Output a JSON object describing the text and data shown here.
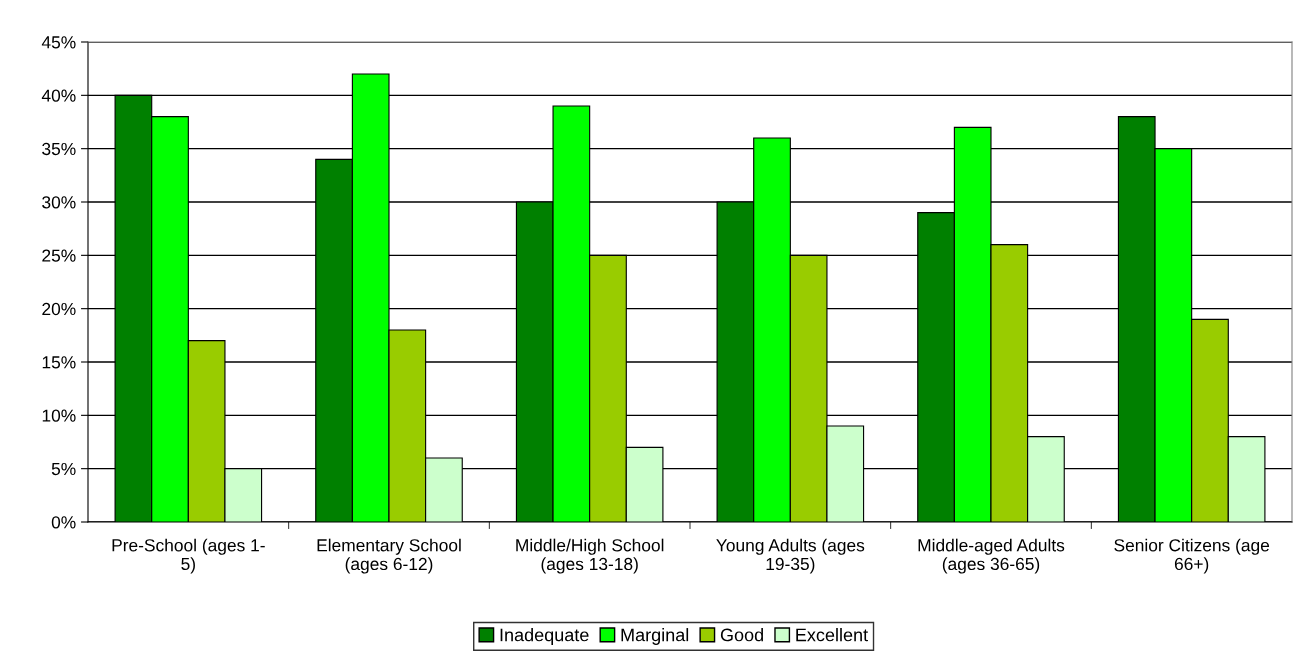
{
  "chart_data": {
    "type": "bar",
    "categories": [
      "Pre-School (ages 1-\n5)",
      "Elementary School\n(ages 6-12)",
      "Middle/High School\n(ages 13-18)",
      "Young Adults (ages\n19-35)",
      "Middle-aged Adults\n(ages 36-65)",
      "Senior Citizens (age\n66+)"
    ],
    "series": [
      {
        "name": "Inadequate",
        "color": "#008000",
        "values": [
          40,
          34,
          30,
          30,
          29,
          38
        ]
      },
      {
        "name": "Marginal",
        "color": "#00ff00",
        "values": [
          38,
          42,
          39,
          36,
          37,
          35
        ]
      },
      {
        "name": "Good",
        "color": "#99cc00",
        "values": [
          17,
          18,
          25,
          25,
          26,
          19
        ]
      },
      {
        "name": "Excellent",
        "color": "#ccffcc",
        "values": [
          5,
          6,
          7,
          9,
          8,
          8
        ]
      }
    ],
    "ylim": [
      0,
      45
    ],
    "yticks": [
      {
        "value": 0,
        "label": "0%"
      },
      {
        "value": 5,
        "label": "5%"
      },
      {
        "value": 10,
        "label": "10%"
      },
      {
        "value": 15,
        "label": "15%"
      },
      {
        "value": 20,
        "label": "20%"
      },
      {
        "value": 25,
        "label": "25%"
      },
      {
        "value": 30,
        "label": "30%"
      },
      {
        "value": 35,
        "label": "35%"
      },
      {
        "value": 40,
        "label": "40%"
      },
      {
        "value": 45,
        "label": "45%"
      }
    ],
    "grid": "y",
    "legend": "bottom"
  }
}
